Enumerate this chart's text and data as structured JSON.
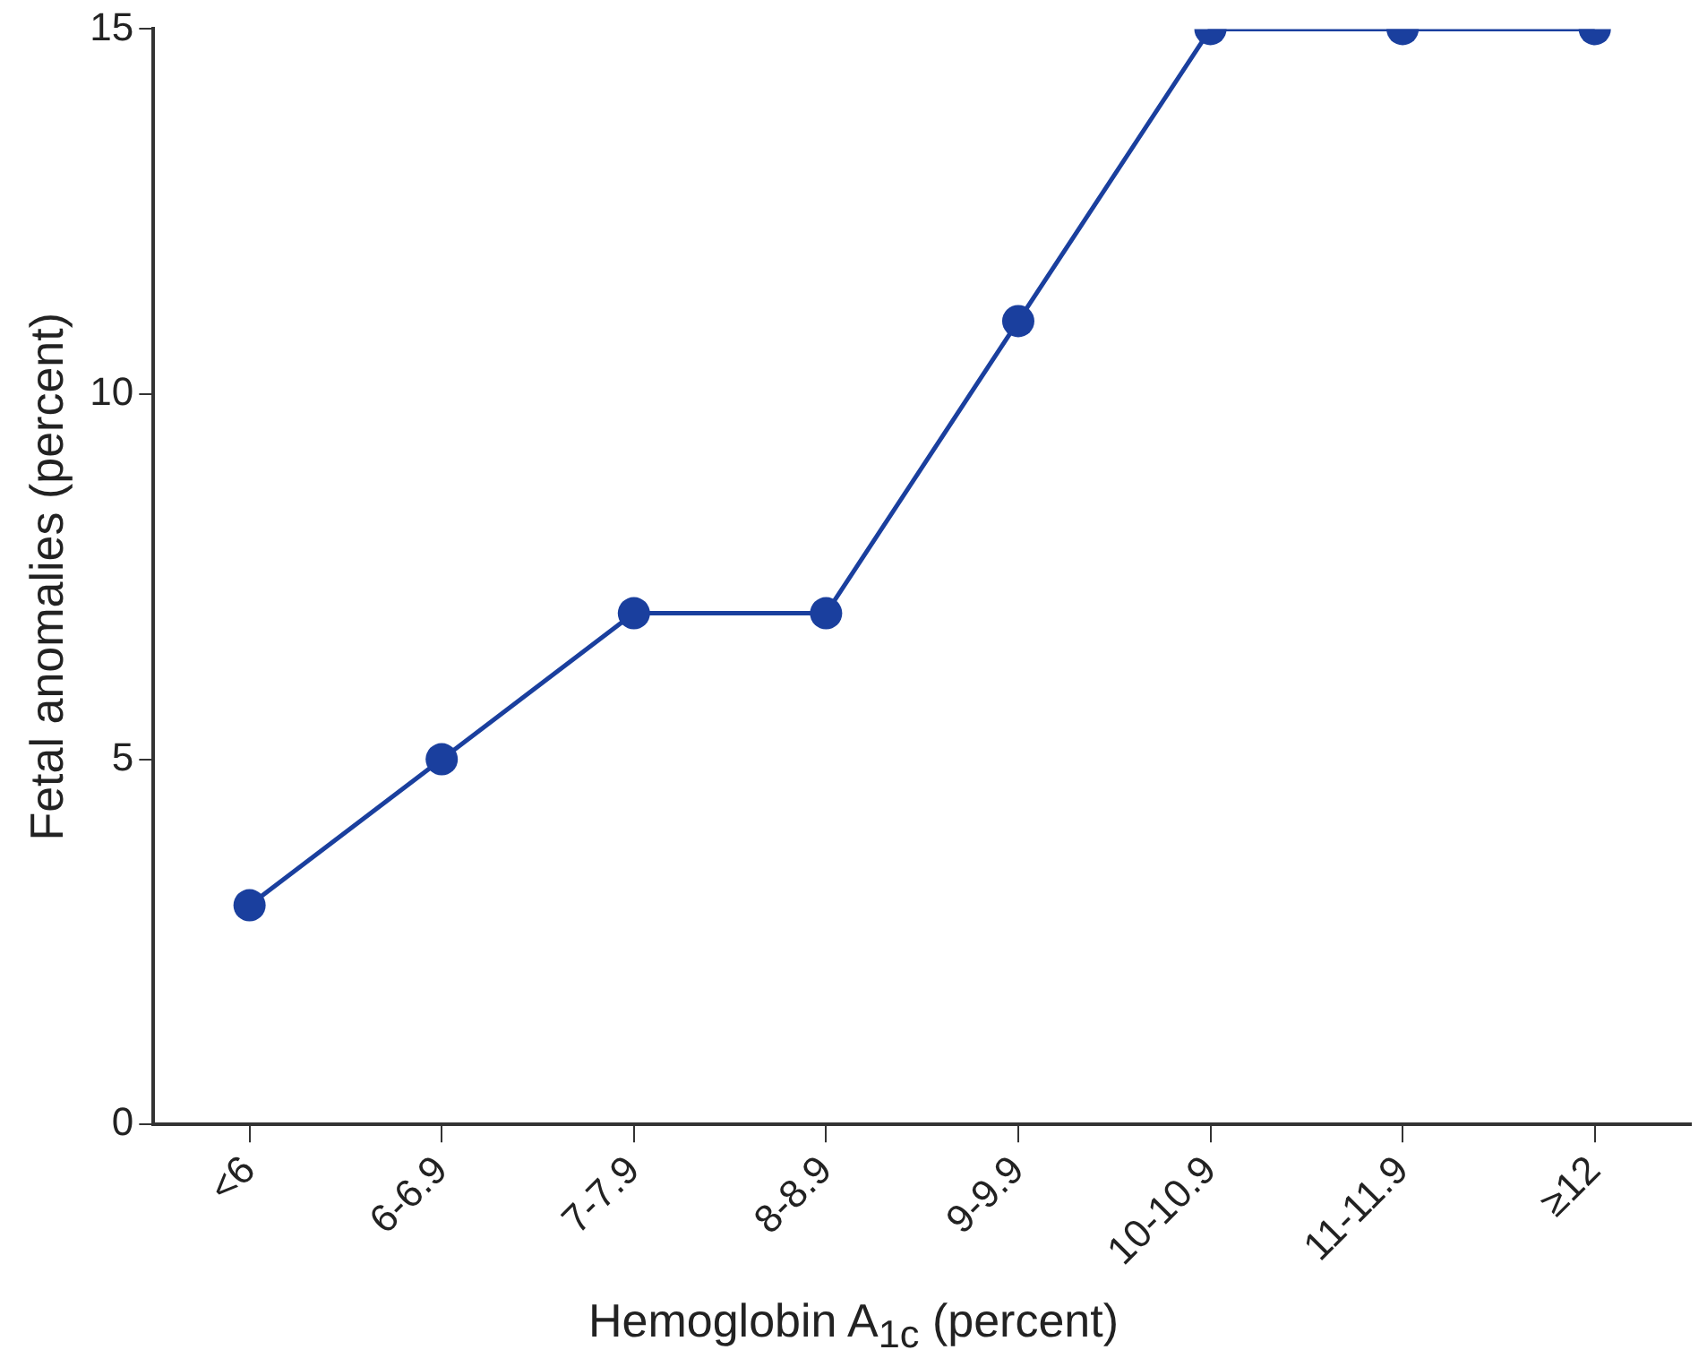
{
  "chart_data": {
    "type": "line",
    "xlabel": "Hemoglobin A$_{1c}$ (percent)",
    "ylabel": "Fetal anomalies (percent)",
    "categories": [
      "<6",
      "6-6.9",
      "7-7.9",
      "8-8.9",
      "9-9.9",
      "10-10.9",
      "11-11.9",
      "≥12"
    ],
    "values": [
      3,
      5,
      7,
      7,
      11,
      15,
      15,
      15
    ],
    "color": "#1a3f9e",
    "ylim": [
      0,
      15
    ],
    "yticks": [
      0,
      5,
      10,
      15
    ],
    "marker": "circle"
  }
}
